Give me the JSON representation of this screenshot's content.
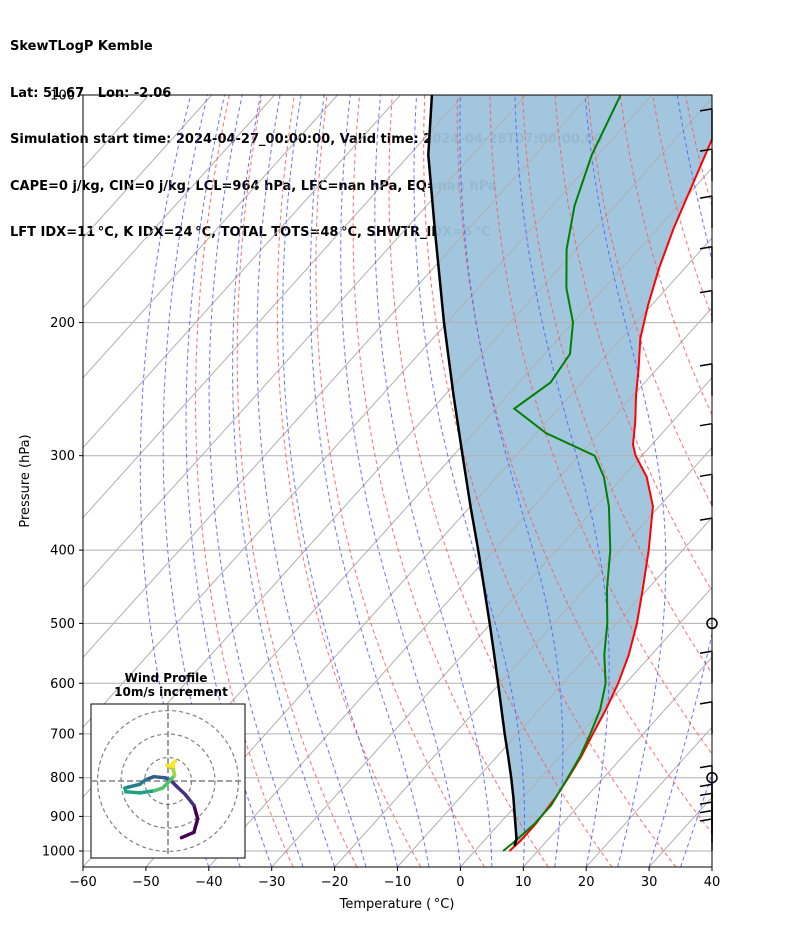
{
  "header": {
    "line1": "SkewTLogP Kemble",
    "line2": "Lat: 51.67   Lon: -2.06",
    "line3": "Simulation start time: 2024-04-27_00:00:00, Valid time: 2024-04-28T07:00:00.00",
    "line4": "CAPE=0 j/kg, CIN=0 j/kg, LCL=964 hPa, LFC=nan hPa, EQ=nan hPa",
    "line5": "LFT IDX=11 °C, K IDX=24 °C, TOTAL TOTS=48 °C, SHWTR_IDX=6 °C"
  },
  "chart_data": {
    "type": "line",
    "xlabel": "Temperature ( °C)",
    "ylabel": "Pressure (hPa)",
    "xlim": [
      -60,
      40
    ],
    "ylim": [
      1050,
      100
    ],
    "y_scale": "log",
    "skew": true,
    "grid": true,
    "xticks": [
      -60,
      -50,
      -40,
      -30,
      -20,
      -10,
      0,
      10,
      20,
      30,
      40
    ],
    "yticks": [
      1000,
      900,
      800,
      700,
      600,
      500,
      400,
      300,
      200,
      100
    ],
    "series": [
      {
        "kind": "temperature",
        "color": "#ff0000",
        "points": [
          [
            1000,
            5.5
          ],
          [
            970,
            5.8
          ],
          [
            920,
            5.8
          ],
          [
            850,
            5.2
          ],
          [
            800,
            4.4
          ],
          [
            750,
            3.4
          ],
          [
            700,
            2.0
          ],
          [
            650,
            0.6
          ],
          [
            600,
            -1.2
          ],
          [
            550,
            -3.6
          ],
          [
            500,
            -6.8
          ],
          [
            450,
            -10.8
          ],
          [
            400,
            -15.4
          ],
          [
            350,
            -21.0
          ],
          [
            320,
            -26.2
          ],
          [
            300,
            -31.0
          ],
          [
            290,
            -33.0
          ],
          [
            270,
            -36.0
          ],
          [
            250,
            -39.5
          ],
          [
            230,
            -43.0
          ],
          [
            210,
            -47.0
          ],
          [
            190,
            -50.5
          ],
          [
            170,
            -54.0
          ],
          [
            150,
            -57.5
          ],
          [
            130,
            -61.0
          ],
          [
            115,
            -64.0
          ],
          [
            100,
            -66.5
          ]
        ]
      },
      {
        "kind": "dewpoint",
        "color": "#008000",
        "points": [
          [
            1000,
            4.5
          ],
          [
            970,
            5.0
          ],
          [
            920,
            5.6
          ],
          [
            870,
            5.6
          ],
          [
            800,
            4.3
          ],
          [
            750,
            3.2
          ],
          [
            700,
            1.6
          ],
          [
            650,
            -0.3
          ],
          [
            600,
            -3.2
          ],
          [
            550,
            -7.5
          ],
          [
            500,
            -11.5
          ],
          [
            450,
            -16.5
          ],
          [
            400,
            -21.5
          ],
          [
            350,
            -28.0
          ],
          [
            320,
            -33.0
          ],
          [
            300,
            -37.5
          ],
          [
            280,
            -48.5
          ],
          [
            260,
            -57.0
          ],
          [
            240,
            -55.0
          ],
          [
            220,
            -56.0
          ],
          [
            200,
            -60.0
          ],
          [
            180,
            -66.0
          ],
          [
            160,
            -71.5
          ],
          [
            140,
            -76.5
          ],
          [
            120,
            -81.0
          ],
          [
            100,
            -85.0
          ]
        ]
      },
      {
        "kind": "parcel",
        "color": "#000000",
        "points": [
          [
            985,
            5.6
          ],
          [
            964,
            4.9
          ],
          [
            900,
            1.4
          ],
          [
            850,
            -1.5
          ],
          [
            800,
            -4.7
          ],
          [
            750,
            -8.2
          ],
          [
            700,
            -12.0
          ],
          [
            650,
            -16.0
          ],
          [
            600,
            -20.3
          ],
          [
            550,
            -25.0
          ],
          [
            500,
            -30.2
          ],
          [
            450,
            -36.0
          ],
          [
            400,
            -42.5
          ],
          [
            350,
            -50.0
          ],
          [
            300,
            -58.5
          ],
          [
            250,
            -68.5
          ],
          [
            200,
            -80.5
          ],
          [
            150,
            -95.5
          ],
          [
            120,
            -107
          ],
          [
            100,
            -115
          ]
        ]
      }
    ],
    "annotations": {
      "shaded_area": "between parcel and environmental temperature",
      "shade_color": "#9ec3dd"
    },
    "wind_barbs": [
      {
        "p": 1000,
        "kind": "barb"
      },
      {
        "p": 975,
        "kind": "barb"
      },
      {
        "p": 950,
        "kind": "barb"
      },
      {
        "p": 925,
        "kind": "barb"
      },
      {
        "p": 900,
        "kind": "barb"
      },
      {
        "p": 850,
        "kind": "barb"
      },
      {
        "p": 800,
        "kind": "calm"
      },
      {
        "p": 700,
        "kind": "barb"
      },
      {
        "p": 600,
        "kind": "barb"
      },
      {
        "p": 500,
        "kind": "calm"
      },
      {
        "p": 400,
        "kind": "barb"
      },
      {
        "p": 350,
        "kind": "barb"
      },
      {
        "p": 300,
        "kind": "barb"
      },
      {
        "p": 250,
        "kind": "barb"
      },
      {
        "p": 200,
        "kind": "barb"
      },
      {
        "p": 175,
        "kind": "barb"
      },
      {
        "p": 150,
        "kind": "barb"
      },
      {
        "p": 130,
        "kind": "barb"
      },
      {
        "p": 115,
        "kind": "barb"
      }
    ],
    "inset": {
      "title": "Wind Profile",
      "subtitle": "10m/s increment",
      "type": "hodograph",
      "rings": [
        10,
        20,
        30
      ],
      "points": [
        [
          2.5,
          -10.5
        ],
        [
          4.8,
          -9.5
        ],
        [
          5.5,
          -7.0
        ],
        [
          4.8,
          -4.5
        ],
        [
          3.2,
          -2.5
        ],
        [
          1.6,
          -1.0
        ],
        [
          0.4,
          0.2
        ],
        [
          -0.6,
          0.6
        ],
        [
          -2.6,
          0.8
        ],
        [
          -4.2,
          0.2
        ],
        [
          -5.2,
          -0.6
        ],
        [
          -6.8,
          -1.0
        ],
        [
          -8.0,
          -1.3
        ],
        [
          -7.8,
          -2.0
        ],
        [
          -5.2,
          -2.2
        ],
        [
          -2.5,
          -1.8
        ],
        [
          -1.0,
          -1.3
        ],
        [
          0.3,
          0.0
        ],
        [
          1.2,
          1.0
        ],
        [
          1.0,
          2.2
        ],
        [
          0.3,
          2.6
        ],
        [
          -0.2,
          2.9
        ],
        [
          1.0,
          2.7
        ],
        [
          0.8,
          3.2
        ],
        [
          1.4,
          3.7
        ]
      ]
    }
  }
}
